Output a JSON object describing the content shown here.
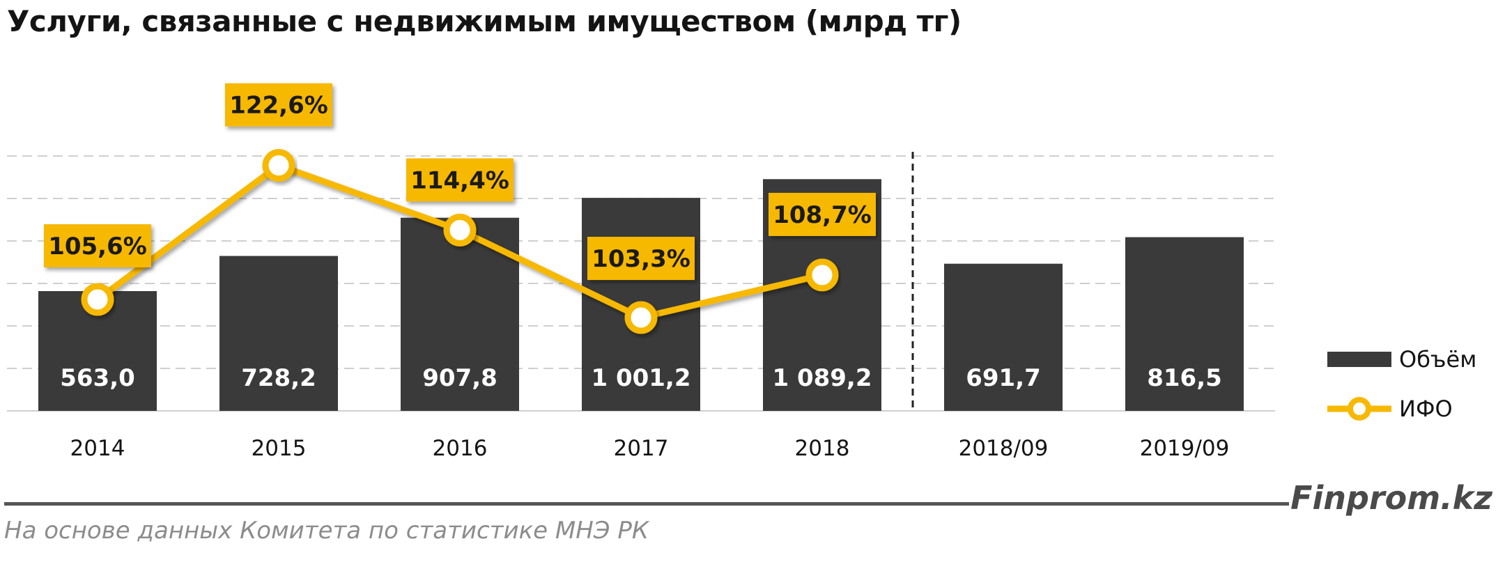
{
  "title": "Услуги, связанные с недвижимым имуществом (млрд тг)",
  "source": "На основе данных  Комитета по статистике МНЭ РК",
  "brand": "Finprom.kz",
  "colors": {
    "bar": "#3a3a3a",
    "line": "#f7b800",
    "label_bg": "#f7b800",
    "grid": "#cfcfcf",
    "text": "#141414"
  },
  "chart_data": {
    "type": "bar",
    "categories": [
      "2014",
      "2015",
      "2016",
      "2017",
      "2018",
      "2018/09",
      "2019/09"
    ],
    "series": [
      {
        "name": "Объём",
        "type": "bar",
        "values": [
          563.0,
          728.2,
          907.8,
          1001.2,
          1089.2,
          691.7,
          816.5
        ],
        "labels": [
          "563,0",
          "728,2",
          "907,8",
          "1 001,2",
          "1 089,2",
          "691,7",
          "816,5"
        ]
      },
      {
        "name": "ИФО",
        "type": "line",
        "values": [
          105.6,
          122.6,
          114.4,
          103.3,
          108.7,
          null,
          null
        ],
        "labels": [
          "105,6%",
          "122,6%",
          "114,4%",
          "103,3%",
          "108,7%",
          null,
          null
        ]
      }
    ],
    "legend": [
      "Объём",
      "ИФО"
    ],
    "legend_position": "right",
    "divider_after_category": "2018",
    "grid": true
  }
}
